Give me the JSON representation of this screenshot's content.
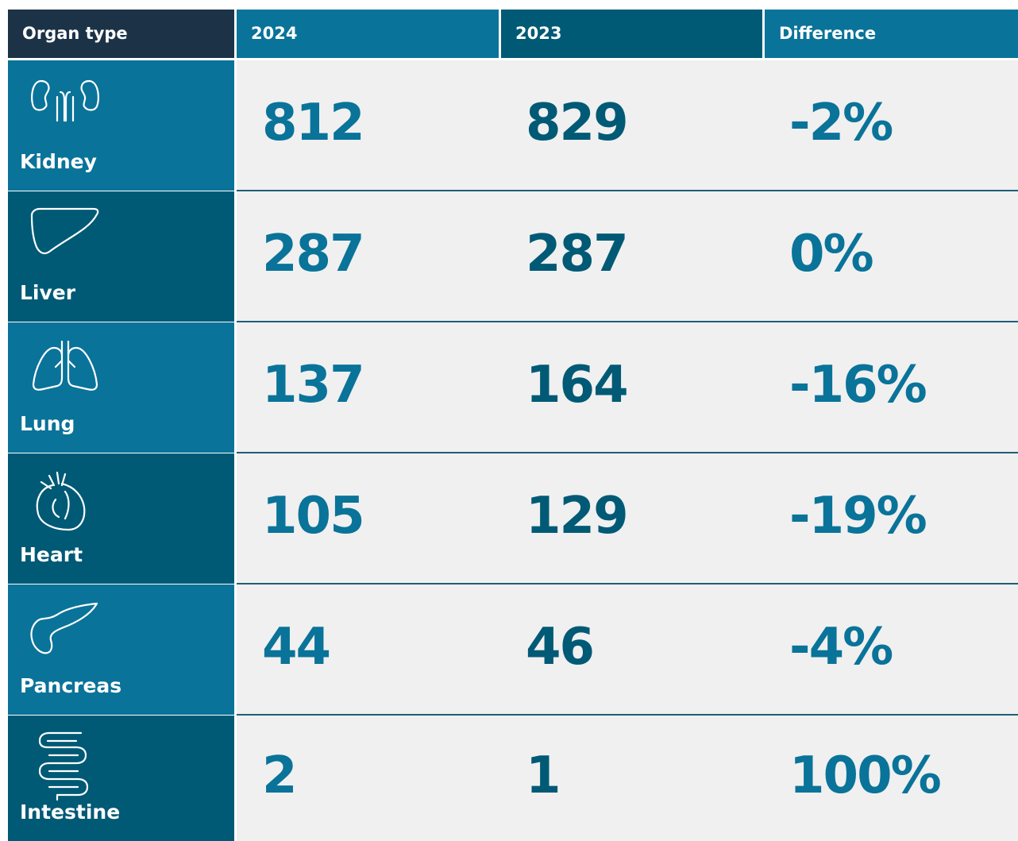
{
  "header": [
    "Organ type",
    "2024",
    "2023",
    "Difference"
  ],
  "rows": [
    [
      "Kidney",
      "812",
      "829",
      "-2%"
    ],
    [
      "Liver",
      "287",
      "287",
      "0%"
    ],
    [
      "Lung",
      "137",
      "164",
      "-16%"
    ],
    [
      "Heart",
      "105",
      "129",
      "-19%"
    ],
    [
      "Pancreas",
      "44",
      "46",
      "-4%"
    ],
    [
      "Intestine",
      "2",
      "1",
      "100%"
    ]
  ]
}
